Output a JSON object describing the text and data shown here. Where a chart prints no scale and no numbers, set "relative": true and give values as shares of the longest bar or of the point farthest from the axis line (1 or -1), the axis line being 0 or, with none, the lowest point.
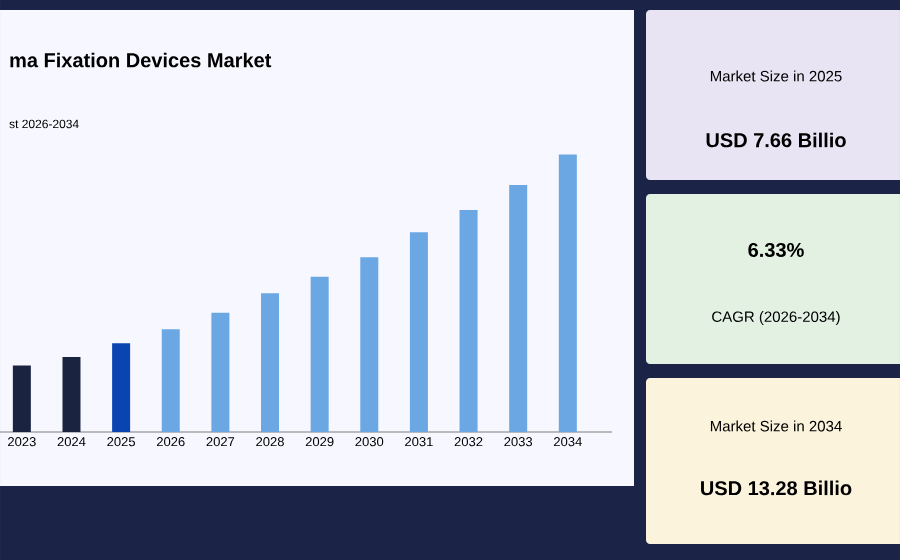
{
  "chart_data": [
    {
      "type": "bar",
      "title": "ma Fixation Devices Market",
      "subtitle": "st 2026-2034",
      "relative": true,
      "categories": [
        "2023",
        "2024",
        "2025",
        "2026",
        "2027",
        "2028",
        "2029",
        "2030",
        "2031",
        "2032",
        "2033",
        "2034"
      ],
      "values": [
        0.24,
        0.27,
        0.32,
        0.37,
        0.43,
        0.5,
        0.56,
        0.63,
        0.72,
        0.8,
        0.89,
        1
      ],
      "colors": [
        "#1a2340",
        "#1a2340",
        "#0a44b0",
        "#6aa7e3",
        "#6aa7e3",
        "#6aa7e3",
        "#6aa7e3",
        "#6aa7e3",
        "#6aa7e3",
        "#6aa7e3",
        "#6aa7e3",
        "#6aa7e3"
      ],
      "grid": false
    },
    {
      "type": "other",
      "annotations": [
        "Market Size in 2025",
        "USD 7.66 Billio",
        "6.33%",
        "CAGR (2026-2034)",
        "Market Size in 2034",
        "USD 13.28 Billio"
      ]
    }
  ]
}
